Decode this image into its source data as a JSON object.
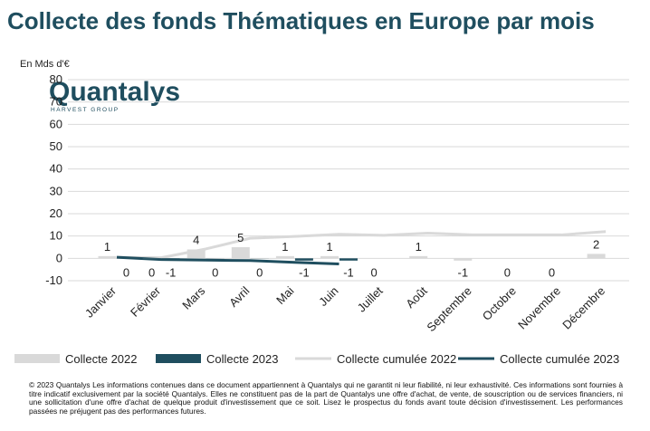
{
  "chart_data": {
    "type": "bar",
    "title": "Collecte des fonds Thématiques en Europe par mois",
    "y_label": "En Mds d'€",
    "logo": {
      "name": "Quantalys",
      "tagline": "HARVEST GROUP"
    },
    "categories": [
      "Janvier",
      "Février",
      "Mars",
      "Avril",
      "Mai",
      "Juin",
      "Juillet",
      "Août",
      "Septembre",
      "Octobre",
      "Novembre",
      "Décembre"
    ],
    "series": [
      {
        "name": "Collecte 2022",
        "type": "bar",
        "color": "#d9d9d9",
        "values": [
          1,
          0,
          4,
          5,
          1,
          1,
          0,
          1,
          -1,
          0,
          0,
          2
        ]
      },
      {
        "name": "Collecte 2023",
        "type": "bar",
        "color": "#1f4e5f",
        "values": [
          0,
          -1,
          0,
          0,
          -1,
          -1,
          null,
          null,
          null,
          null,
          null,
          null
        ]
      },
      {
        "name": "Collecte cumulée 2022",
        "type": "line",
        "color": "#d9d9d9",
        "values": [
          0.5,
          0.3,
          4.2,
          9,
          9.8,
          10.8,
          10.3,
          11.3,
          10.5,
          10.5,
          10.5,
          12
        ]
      },
      {
        "name": "Collecte cumulée 2023",
        "type": "line",
        "color": "#1f4e5f",
        "values": [
          0.5,
          -0.5,
          -0.8,
          -1,
          -1.8,
          -2.5,
          null,
          null,
          null,
          null,
          null,
          null
        ]
      }
    ],
    "ylim": [
      -10,
      80
    ],
    "yticks": [
      -10,
      0,
      10,
      20,
      30,
      40,
      50,
      60,
      70,
      80
    ],
    "grid": true,
    "footer": "© 2023 Quantalys Les informations contenues dans ce document appartiennent à Quantalys qui ne garantit ni leur fiabilité, ni leur exhaustivité. Ces informations sont fournies à titre indicatif exclusivement par la société Quantalys. Elles ne constituent pas de la part de Quantalys une offre d'achat, de vente, de souscription ou de services financiers, ni une sollicitation d'une offre d'achat de quelque produit d'investissement que ce soit. Lisez le prospectus du fonds avant toute décision d'investissement. Les performances passées ne préjugent pas des performances futures."
  }
}
